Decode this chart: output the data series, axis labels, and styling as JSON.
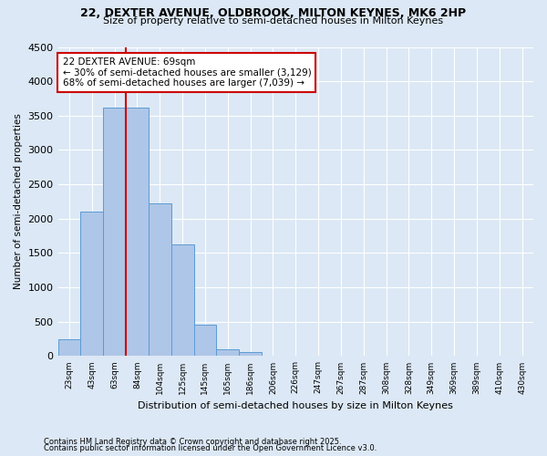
{
  "title1": "22, DEXTER AVENUE, OLDBROOK, MILTON KEYNES, MK6 2HP",
  "title2": "Size of property relative to semi-detached houses in Milton Keynes",
  "xlabel": "Distribution of semi-detached houses by size in Milton Keynes",
  "ylabel": "Number of semi-detached properties",
  "footnote1": "Contains HM Land Registry data © Crown copyright and database right 2025.",
  "footnote2": "Contains public sector information licensed under the Open Government Licence v3.0.",
  "bin_labels": [
    "23sqm",
    "43sqm",
    "63sqm",
    "84sqm",
    "104sqm",
    "125sqm",
    "145sqm",
    "165sqm",
    "186sqm",
    "206sqm",
    "226sqm",
    "247sqm",
    "267sqm",
    "287sqm",
    "308sqm",
    "328sqm",
    "349sqm",
    "369sqm",
    "389sqm",
    "410sqm",
    "430sqm"
  ],
  "bar_values": [
    250,
    2100,
    3620,
    3620,
    2220,
    1620,
    460,
    100,
    55,
    0,
    0,
    0,
    0,
    0,
    0,
    0,
    0,
    0,
    0,
    0
  ],
  "bar_color": "#aec6e8",
  "bar_edge_color": "#5b9bd5",
  "vline_x": 2.5,
  "vline_color": "#cc0000",
  "annotation_text": "22 DEXTER AVENUE: 69sqm\n← 30% of semi-detached houses are smaller (3,129)\n68% of semi-detached houses are larger (7,039) →",
  "annotation_box_color": "#cc0000",
  "ylim": [
    0,
    4500
  ],
  "yticks": [
    0,
    500,
    1000,
    1500,
    2000,
    2500,
    3000,
    3500,
    4000,
    4500
  ],
  "background_color": "#dce8f5",
  "grid_color": "#ffffff"
}
